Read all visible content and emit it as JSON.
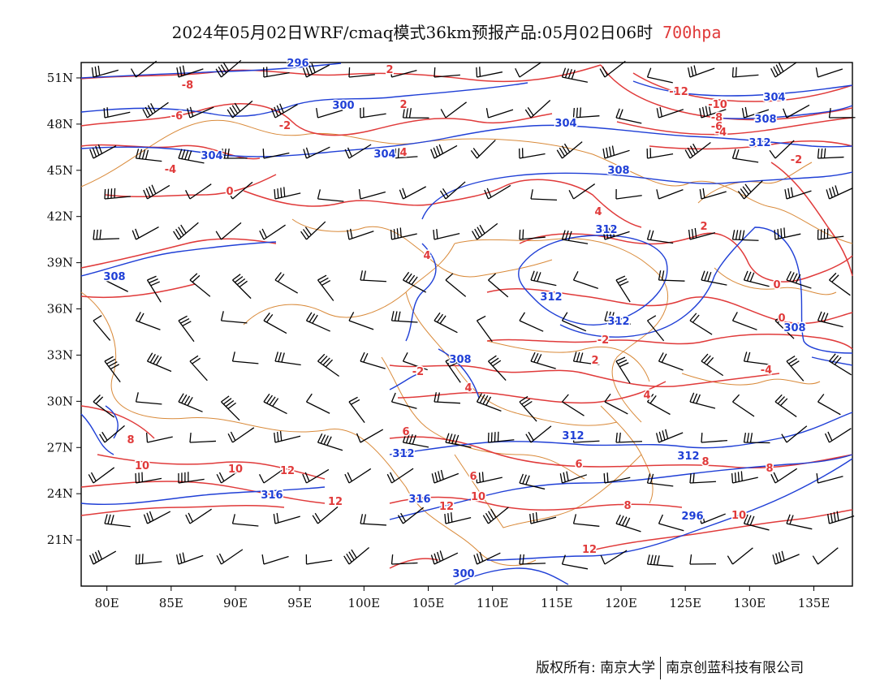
{
  "title": {
    "main": "2024年05月02日WRF/cmaq模式36km预报产品:05月02日06时",
    "level": "700hpa"
  },
  "map": {
    "lon_range": [
      78,
      138
    ],
    "lat_range": [
      18,
      52
    ],
    "lon_ticks": [
      "80E",
      "85E",
      "90E",
      "95E",
      "100E",
      "105E",
      "110E",
      "115E",
      "120E",
      "125E",
      "130E",
      "135E"
    ],
    "lat_ticks": [
      "51N",
      "48N",
      "45N",
      "42N",
      "39N",
      "36N",
      "33N",
      "30N",
      "27N",
      "24N",
      "21N"
    ],
    "colors": {
      "height": "#1f3fd6",
      "temperature": "#e03a3a",
      "borders": "#d98a3a",
      "wind": "#000000"
    },
    "height_labels": [
      "296",
      "300",
      "304",
      "304",
      "304",
      "308",
      "312",
      "312",
      "312",
      "308",
      "308",
      "308",
      "312",
      "312",
      "312",
      "316",
      "316",
      "296",
      "300",
      "304",
      "308",
      "312"
    ],
    "temp_labels": [
      "-8",
      "-6",
      "-4",
      "0",
      "-2",
      "2",
      "2",
      "4",
      "4",
      "-12",
      "-10",
      "-8",
      "-6",
      "-4",
      "-2",
      "2",
      "0",
      "0",
      "-2",
      "2",
      "4",
      "4",
      "6",
      "6",
      "8",
      "8",
      "10",
      "10",
      "12",
      "12",
      "12",
      "10",
      "8",
      "10",
      "-2",
      "4",
      "6",
      "8",
      "12",
      "-4"
    ]
  },
  "footer": {
    "left": "版权所有: 南京大学",
    "right": "南京创蓝科技有限公司"
  }
}
